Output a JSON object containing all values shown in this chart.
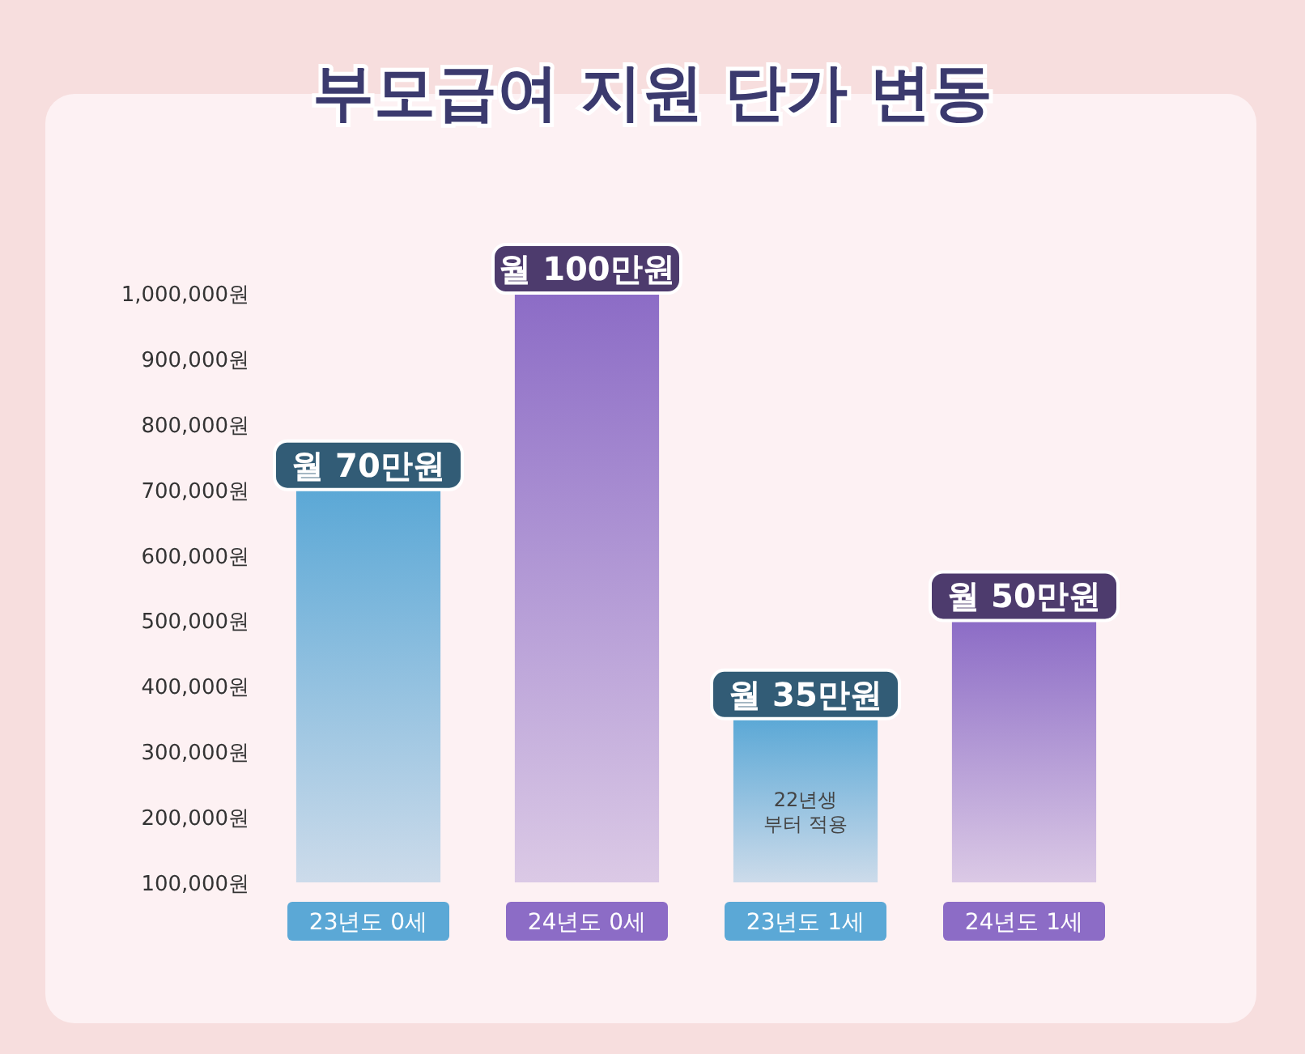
{
  "chart_data": {
    "type": "bar",
    "title": "부모급여 지원 단가 변동",
    "categories": [
      "23년도 0세",
      "24년도 0세",
      "23년도 1세",
      "24년도 1세"
    ],
    "values": [
      700000,
      1000000,
      350000,
      500000
    ],
    "colors": [
      "#5ba8d6",
      "#8c6cc6",
      "#5ba8d6",
      "#8c6cc6"
    ],
    "value_labels": [
      "월 70만원",
      "월 100만원",
      "월 35만원",
      "월 50만원"
    ],
    "ylim": [
      100000,
      1000000
    ],
    "yticks": [
      {
        "value": 100000,
        "label": "100,000원"
      },
      {
        "value": 200000,
        "label": "200,000원"
      },
      {
        "value": 300000,
        "label": "300,000원"
      },
      {
        "value": 400000,
        "label": "400,000원"
      },
      {
        "value": 500000,
        "label": "500,000원"
      },
      {
        "value": 600000,
        "label": "600,000원"
      },
      {
        "value": 700000,
        "label": "700,000원"
      },
      {
        "value": 800000,
        "label": "800,000원"
      },
      {
        "value": 900000,
        "label": "900,000원"
      },
      {
        "value": 1000000,
        "label": "1,000,000원"
      }
    ],
    "annotations": [
      "22년생\n부터 적용"
    ],
    "grid": false
  }
}
